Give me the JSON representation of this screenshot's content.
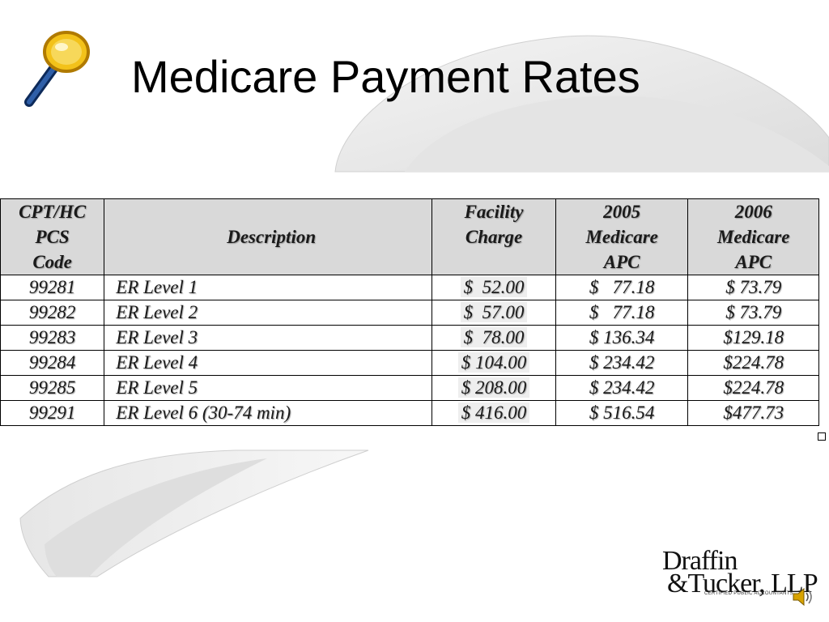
{
  "slide": {
    "title": "Medicare Payment Rates"
  },
  "table": {
    "headers": {
      "code": [
        "CPT/HC",
        "PCS",
        "Code"
      ],
      "description": [
        "Description"
      ],
      "facility": [
        "Facility",
        "Charge"
      ],
      "apc2005": [
        "2005",
        "Medicare",
        "APC"
      ],
      "apc2006": [
        "2006",
        "Medicare",
        "APC"
      ]
    },
    "rows": [
      {
        "code": "99281",
        "description": "ER Level 1",
        "facility": "$  52.00",
        "apc2005": "$   77.18",
        "apc2006": "$ 73.79"
      },
      {
        "code": "99282",
        "description": "ER Level 2",
        "facility": "$  57.00",
        "apc2005": "$   77.18",
        "apc2006": "$ 73.79"
      },
      {
        "code": "99283",
        "description": "ER Level 3",
        "facility": "$  78.00",
        "apc2005": "$ 136.34",
        "apc2006": "$129.18"
      },
      {
        "code": "99284",
        "description": "ER Level 4",
        "facility": "$ 104.00",
        "apc2005": "$ 234.42",
        "apc2006": "$224.78"
      },
      {
        "code": "99285",
        "description": "ER Level 5",
        "facility": "$ 208.00",
        "apc2005": "$ 234.42",
        "apc2006": "$224.78"
      },
      {
        "code": "99291",
        "description": "ER Level 6 (30-74 min)",
        "facility": "$ 416.00",
        "apc2005": "$ 516.54",
        "apc2006": "$477.73"
      }
    ]
  },
  "logo": {
    "line1": "Draffin",
    "line2": "&Tucker, LLP",
    "tagline": "CERTIFIED PUBLIC ACCOUNTANTS"
  },
  "icons": {
    "magnifier": "magnifying-glass-icon",
    "speaker": "speaker-icon"
  },
  "colors": {
    "header_bg": "#d9d9d9",
    "magnifier_rim": "#e8b000",
    "magnifier_handle": "#1f3f7a"
  }
}
